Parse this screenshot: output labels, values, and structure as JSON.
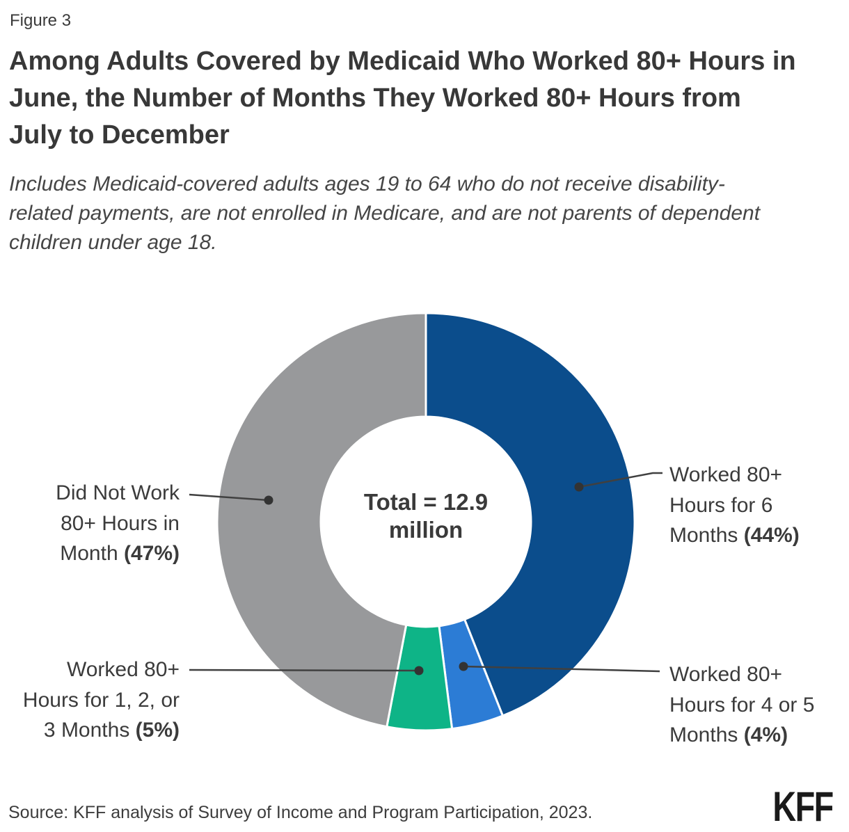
{
  "figure_label": "Figure 3",
  "title_lines": [
    "Among Adults Covered by Medicaid Who Worked 80+ Hours in",
    "June, the Number of Months They Worked 80+ Hours from",
    "July to December"
  ],
  "subtitle_lines": [
    "Includes Medicaid-covered adults ages 19 to 64 who do not receive disability-",
    "related payments, are not enrolled in Medicare, and are not parents of dependent",
    "children under age 18."
  ],
  "chart_data": {
    "type": "pie",
    "subtype": "donut",
    "title": "Among Adults Covered by Medicaid Who Worked 80+ Hours in June, the Number of Months They Worked 80+ Hours from July to December",
    "center_label_lines": [
      "Total = 12.9",
      "million"
    ],
    "total": "12.9 million",
    "start_angle_deg": 0,
    "direction": "clockwise",
    "categories": [
      "Worked 80+ Hours for 6 Months",
      "Worked 80+ Hours for 4 or 5 Months",
      "Worked 80+ Hours for 1, 2, or 3 Months",
      "Did Not Work 80+ Hours in Month"
    ],
    "values": [
      44,
      4,
      5,
      47
    ],
    "segments": [
      {
        "label": "Worked 80+ Hours for 6 Months",
        "pct": 44,
        "color": "#0B4D8C"
      },
      {
        "label": "Worked 80+ Hours for 4 or 5 Months",
        "pct": 4,
        "color": "#2C7CD5"
      },
      {
        "label": "Worked 80+ Hours for 1, 2, or 3 Months",
        "pct": 5,
        "color": "#0EB487"
      },
      {
        "label": "Did Not Work 80+ Hours in Month",
        "pct": 47,
        "color": "#98999B"
      }
    ]
  },
  "callouts": {
    "six_months": {
      "lines": [
        "Worked 80+",
        "Hours for 6"
      ],
      "last_prefix": "Months ",
      "pct_bold": "(44%)"
    },
    "four_five_months": {
      "lines": [
        "Worked 80+",
        "Hours for 4 or 5"
      ],
      "last_prefix": "Months ",
      "pct_bold": "(4%)"
    },
    "did_not_work": {
      "lines": [
        "Did Not Work",
        "80+ Hours in"
      ],
      "last_prefix": "Month ",
      "pct_bold": "(47%)"
    },
    "one_two_three_months": {
      "lines": [
        "Worked 80+",
        "Hours for 1, 2, or"
      ],
      "last_prefix": "3 Months ",
      "pct_bold": "(5%)"
    }
  },
  "source": "Source: KFF analysis of Survey of Income and Program Participation, 2023.",
  "logo": "KFF",
  "colors": {
    "dark_blue": "#0B4D8C",
    "light_blue": "#2C7CD5",
    "green": "#0EB487",
    "gray": "#98999B",
    "leader_line": "#404040",
    "text": "#3b3b3b"
  }
}
